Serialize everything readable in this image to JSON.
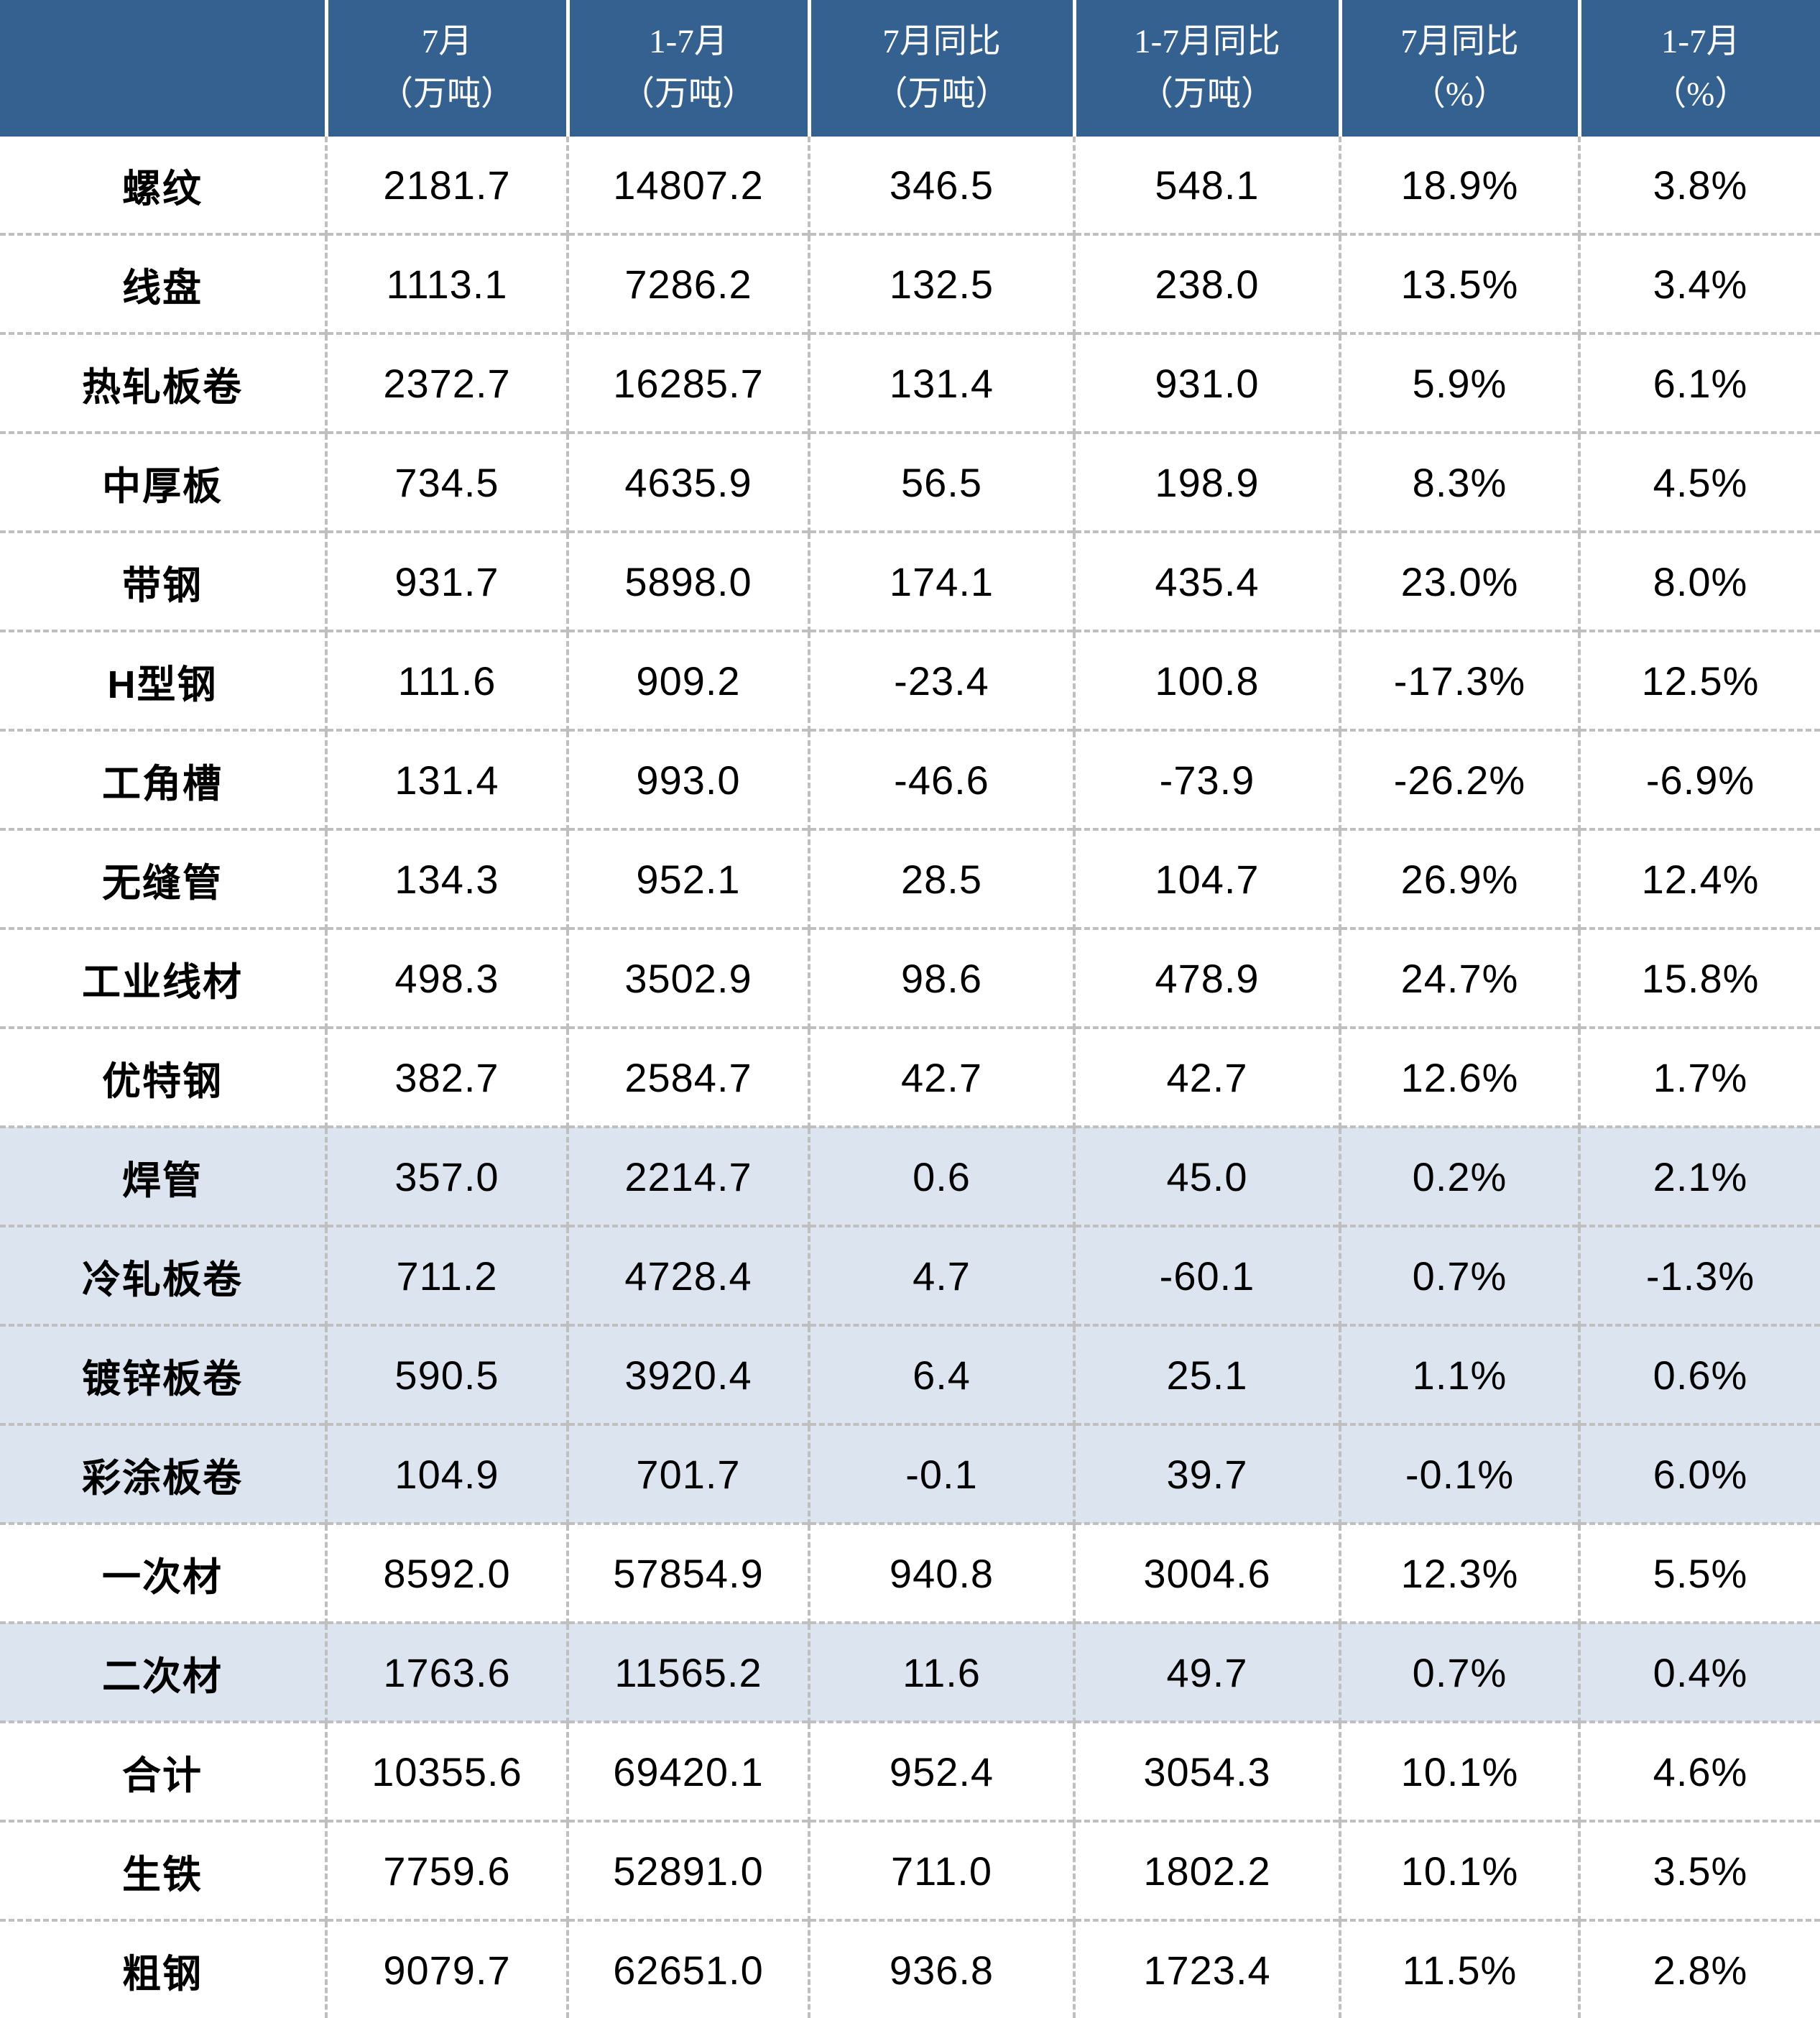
{
  "colors": {
    "header_bg": "#34618f",
    "header_text": "#ffffff",
    "shaded_row_bg": "#dbe4ef",
    "grid_dash": "#bfbfbf",
    "body_text": "#000000",
    "bottom_bar": "#34618f"
  },
  "table": {
    "header": [
      {
        "l1": "",
        "l2": ""
      },
      {
        "l1": "7月",
        "l2": "（万吨）"
      },
      {
        "l1": "1-7月",
        "l2": "（万吨）"
      },
      {
        "l1": "7月同比",
        "l2": "（万吨）"
      },
      {
        "l1": "1-7月同比",
        "l2": "（万吨）"
      },
      {
        "l1": "7月同比",
        "l2": "（%）"
      },
      {
        "l1": "1-7月",
        "l2": "（%）"
      }
    ],
    "rows": [
      {
        "label": "螺纹",
        "values": [
          "2181.7",
          "14807.2",
          "346.5",
          "548.1",
          "18.9%",
          "3.8%"
        ],
        "shaded": false
      },
      {
        "label": "线盘",
        "values": [
          "1113.1",
          "7286.2",
          "132.5",
          "238.0",
          "13.5%",
          "3.4%"
        ],
        "shaded": false
      },
      {
        "label": "热轧板卷",
        "values": [
          "2372.7",
          "16285.7",
          "131.4",
          "931.0",
          "5.9%",
          "6.1%"
        ],
        "shaded": false
      },
      {
        "label": "中厚板",
        "values": [
          "734.5",
          "4635.9",
          "56.5",
          "198.9",
          "8.3%",
          "4.5%"
        ],
        "shaded": false
      },
      {
        "label": "带钢",
        "values": [
          "931.7",
          "5898.0",
          "174.1",
          "435.4",
          "23.0%",
          "8.0%"
        ],
        "shaded": false
      },
      {
        "label": "H型钢",
        "values": [
          "111.6",
          "909.2",
          "-23.4",
          "100.8",
          "-17.3%",
          "12.5%"
        ],
        "shaded": false
      },
      {
        "label": "工角槽",
        "values": [
          "131.4",
          "993.0",
          "-46.6",
          "-73.9",
          "-26.2%",
          "-6.9%"
        ],
        "shaded": false
      },
      {
        "label": "无缝管",
        "values": [
          "134.3",
          "952.1",
          "28.5",
          "104.7",
          "26.9%",
          "12.4%"
        ],
        "shaded": false
      },
      {
        "label": "工业线材",
        "values": [
          "498.3",
          "3502.9",
          "98.6",
          "478.9",
          "24.7%",
          "15.8%"
        ],
        "shaded": false
      },
      {
        "label": "优特钢",
        "values": [
          "382.7",
          "2584.7",
          "42.7",
          "42.7",
          "12.6%",
          "1.7%"
        ],
        "shaded": false
      },
      {
        "label": "焊管",
        "values": [
          "357.0",
          "2214.7",
          "0.6",
          "45.0",
          "0.2%",
          "2.1%"
        ],
        "shaded": true
      },
      {
        "label": "冷轧板卷",
        "values": [
          "711.2",
          "4728.4",
          "4.7",
          "-60.1",
          "0.7%",
          "-1.3%"
        ],
        "shaded": true
      },
      {
        "label": "镀锌板卷",
        "values": [
          "590.5",
          "3920.4",
          "6.4",
          "25.1",
          "1.1%",
          "0.6%"
        ],
        "shaded": true
      },
      {
        "label": "彩涂板卷",
        "values": [
          "104.9",
          "701.7",
          "-0.1",
          "39.7",
          "-0.1%",
          "6.0%"
        ],
        "shaded": true
      },
      {
        "label": "一次材",
        "values": [
          "8592.0",
          "57854.9",
          "940.8",
          "3004.6",
          "12.3%",
          "5.5%"
        ],
        "shaded": false
      },
      {
        "label": "二次材",
        "values": [
          "1763.6",
          "11565.2",
          "11.6",
          "49.7",
          "0.7%",
          "0.4%"
        ],
        "shaded": true
      },
      {
        "label": "合计",
        "values": [
          "10355.6",
          "69420.1",
          "952.4",
          "3054.3",
          "10.1%",
          "4.6%"
        ],
        "shaded": false
      },
      {
        "label": "生铁",
        "values": [
          "7759.6",
          "52891.0",
          "711.0",
          "1802.2",
          "10.1%",
          "3.5%"
        ],
        "shaded": false
      },
      {
        "label": "粗钢",
        "values": [
          "9079.7",
          "62651.0",
          "936.8",
          "1723.4",
          "11.5%",
          "2.8%"
        ],
        "shaded": false
      }
    ]
  },
  "chart_data": {
    "type": "table",
    "columns": [
      "",
      "7月（万吨）",
      "1-7月（万吨）",
      "7月同比（万吨）",
      "1-7月同比（万吨）",
      "7月同比（%）",
      "1-7月（%）"
    ],
    "rows": [
      [
        "螺纹",
        2181.7,
        14807.2,
        346.5,
        548.1,
        "18.9%",
        "3.8%"
      ],
      [
        "线盘",
        1113.1,
        7286.2,
        132.5,
        238.0,
        "13.5%",
        "3.4%"
      ],
      [
        "热轧板卷",
        2372.7,
        16285.7,
        131.4,
        931.0,
        "5.9%",
        "6.1%"
      ],
      [
        "中厚板",
        734.5,
        4635.9,
        56.5,
        198.9,
        "8.3%",
        "4.5%"
      ],
      [
        "带钢",
        931.7,
        5898.0,
        174.1,
        435.4,
        "23.0%",
        "8.0%"
      ],
      [
        "H型钢",
        111.6,
        909.2,
        -23.4,
        100.8,
        "-17.3%",
        "12.5%"
      ],
      [
        "工角槽",
        131.4,
        993.0,
        -46.6,
        -73.9,
        "-26.2%",
        "-6.9%"
      ],
      [
        "无缝管",
        134.3,
        952.1,
        28.5,
        104.7,
        "26.9%",
        "12.4%"
      ],
      [
        "工业线材",
        498.3,
        3502.9,
        98.6,
        478.9,
        "24.7%",
        "15.8%"
      ],
      [
        "优特钢",
        382.7,
        2584.7,
        42.7,
        42.7,
        "12.6%",
        "1.7%"
      ],
      [
        "焊管",
        357.0,
        2214.7,
        0.6,
        45.0,
        "0.2%",
        "2.1%"
      ],
      [
        "冷轧板卷",
        711.2,
        4728.4,
        4.7,
        -60.1,
        "0.7%",
        "-1.3%"
      ],
      [
        "镀锌板卷",
        590.5,
        3920.4,
        6.4,
        25.1,
        "1.1%",
        "0.6%"
      ],
      [
        "彩涂板卷",
        104.9,
        701.7,
        -0.1,
        39.7,
        "-0.1%",
        "6.0%"
      ],
      [
        "一次材",
        8592.0,
        57854.9,
        940.8,
        3004.6,
        "12.3%",
        "5.5%"
      ],
      [
        "二次材",
        1763.6,
        11565.2,
        11.6,
        49.7,
        "0.7%",
        "0.4%"
      ],
      [
        "合计",
        10355.6,
        69420.1,
        952.4,
        3054.3,
        "10.1%",
        "4.6%"
      ],
      [
        "生铁",
        7759.6,
        52891.0,
        711.0,
        1802.2,
        "10.1%",
        "3.5%"
      ],
      [
        "粗钢",
        9079.7,
        62651.0,
        936.8,
        1723.4,
        "11.5%",
        "2.8%"
      ]
    ]
  }
}
